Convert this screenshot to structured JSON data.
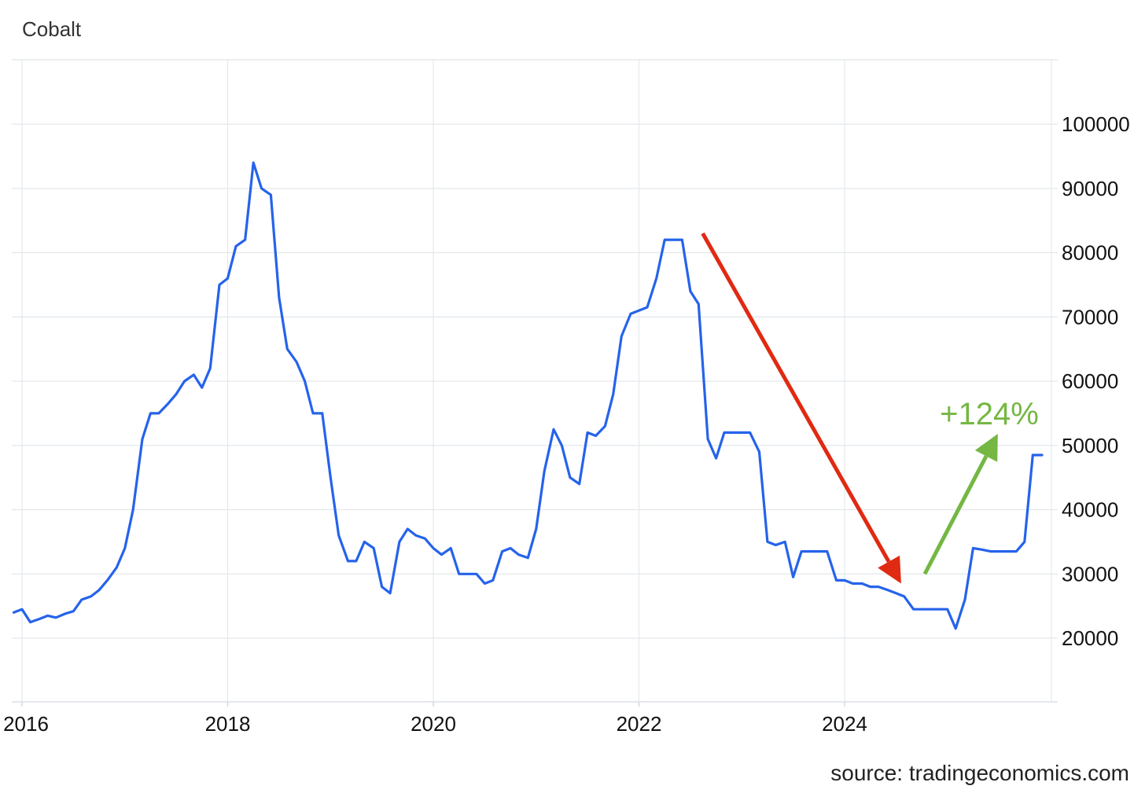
{
  "chart_data": {
    "type": "line",
    "title": "Cobalt",
    "source": "source: tradingeconomics.com",
    "xlabel": "",
    "ylabel": "",
    "xlim": [
      2015.95,
      2026.2
    ],
    "ylim": [
      15000,
      110000
    ],
    "x_ticks": [
      "2016",
      "2018",
      "2020",
      "2022",
      "2024"
    ],
    "y_ticks": [
      "20000",
      "30000",
      "40000",
      "50000",
      "60000",
      "70000",
      "80000",
      "90000",
      "100000"
    ],
    "grid": true,
    "y_axis_side": "right",
    "line_color": "#2563eb",
    "series": [
      {
        "points": [
          [
            2015.92,
            24000
          ],
          [
            2016.0,
            24500
          ],
          [
            2016.08,
            22500
          ],
          [
            2016.17,
            23000
          ],
          [
            2016.25,
            23500
          ],
          [
            2016.33,
            23200
          ],
          [
            2016.42,
            23800
          ],
          [
            2016.5,
            24200
          ],
          [
            2016.58,
            26000
          ],
          [
            2016.67,
            26500
          ],
          [
            2016.75,
            27500
          ],
          [
            2016.83,
            29000
          ],
          [
            2016.92,
            31000
          ],
          [
            2017.0,
            34000
          ],
          [
            2017.08,
            40000
          ],
          [
            2017.17,
            51000
          ],
          [
            2017.25,
            55000
          ],
          [
            2017.33,
            55000
          ],
          [
            2017.42,
            56500
          ],
          [
            2017.5,
            58000
          ],
          [
            2017.58,
            60000
          ],
          [
            2017.67,
            61000
          ],
          [
            2017.75,
            59000
          ],
          [
            2017.83,
            62000
          ],
          [
            2017.92,
            75000
          ],
          [
            2018.0,
            76000
          ],
          [
            2018.08,
            81000
          ],
          [
            2018.17,
            82000
          ],
          [
            2018.25,
            94000
          ],
          [
            2018.33,
            90000
          ],
          [
            2018.42,
            89000
          ],
          [
            2018.5,
            73000
          ],
          [
            2018.58,
            65000
          ],
          [
            2018.67,
            63000
          ],
          [
            2018.75,
            60000
          ],
          [
            2018.83,
            55000
          ],
          [
            2018.92,
            55000
          ],
          [
            2019.0,
            45000
          ],
          [
            2019.08,
            36000
          ],
          [
            2019.17,
            32000
          ],
          [
            2019.25,
            32000
          ],
          [
            2019.33,
            35000
          ],
          [
            2019.42,
            34000
          ],
          [
            2019.5,
            28000
          ],
          [
            2019.58,
            27000
          ],
          [
            2019.67,
            35000
          ],
          [
            2019.75,
            37000
          ],
          [
            2019.83,
            36000
          ],
          [
            2019.92,
            35500
          ],
          [
            2020.0,
            34000
          ],
          [
            2020.08,
            33000
          ],
          [
            2020.17,
            34000
          ],
          [
            2020.25,
            30000
          ],
          [
            2020.33,
            30000
          ],
          [
            2020.42,
            30000
          ],
          [
            2020.5,
            28500
          ],
          [
            2020.58,
            29000
          ],
          [
            2020.67,
            33500
          ],
          [
            2020.75,
            34000
          ],
          [
            2020.83,
            33000
          ],
          [
            2020.92,
            32500
          ],
          [
            2021.0,
            37000
          ],
          [
            2021.08,
            46000
          ],
          [
            2021.17,
            52500
          ],
          [
            2021.25,
            50000
          ],
          [
            2021.33,
            45000
          ],
          [
            2021.42,
            44000
          ],
          [
            2021.5,
            52000
          ],
          [
            2021.58,
            51500
          ],
          [
            2021.67,
            53000
          ],
          [
            2021.75,
            58000
          ],
          [
            2021.83,
            67000
          ],
          [
            2021.92,
            70500
          ],
          [
            2022.0,
            71000
          ],
          [
            2022.08,
            71500
          ],
          [
            2022.17,
            76000
          ],
          [
            2022.25,
            82000
          ],
          [
            2022.33,
            82000
          ],
          [
            2022.42,
            82000
          ],
          [
            2022.5,
            74000
          ],
          [
            2022.58,
            72000
          ],
          [
            2022.67,
            51000
          ],
          [
            2022.75,
            48000
          ],
          [
            2022.83,
            52000
          ],
          [
            2022.92,
            52000
          ],
          [
            2023.0,
            52000
          ],
          [
            2023.08,
            52000
          ],
          [
            2023.17,
            49000
          ],
          [
            2023.25,
            35000
          ],
          [
            2023.33,
            34500
          ],
          [
            2023.42,
            35000
          ],
          [
            2023.5,
            29500
          ],
          [
            2023.58,
            33500
          ],
          [
            2023.67,
            33500
          ],
          [
            2023.75,
            33500
          ],
          [
            2023.83,
            33500
          ],
          [
            2023.92,
            29000
          ],
          [
            2024.0,
            29000
          ],
          [
            2024.08,
            28500
          ],
          [
            2024.17,
            28500
          ],
          [
            2024.25,
            28000
          ],
          [
            2024.33,
            28000
          ],
          [
            2024.42,
            27500
          ],
          [
            2024.5,
            27000
          ],
          [
            2024.58,
            26500
          ],
          [
            2024.67,
            24500
          ],
          [
            2024.75,
            24500
          ],
          [
            2024.83,
            24500
          ],
          [
            2024.92,
            24500
          ],
          [
            2025.0,
            24500
          ],
          [
            2025.08,
            21500
          ],
          [
            2025.17,
            26000
          ],
          [
            2025.25,
            34000
          ],
          [
            2025.33,
            33800
          ],
          [
            2025.42,
            33500
          ],
          [
            2025.5,
            33500
          ],
          [
            2025.58,
            33500
          ],
          [
            2025.67,
            33500
          ],
          [
            2025.75,
            35000
          ],
          [
            2025.83,
            48500
          ],
          [
            2025.92,
            48500
          ]
        ]
      }
    ],
    "annotations": [
      {
        "kind": "arrow",
        "color": "#e02a12",
        "from": [
          2022.62,
          83000
        ],
        "to": [
          2024.55,
          28500
        ]
      },
      {
        "kind": "arrow",
        "color": "#74b743",
        "from": [
          2024.78,
          30000
        ],
        "to": [
          2025.49,
          51800
        ]
      },
      {
        "kind": "text",
        "text": "+124%",
        "color": "#74b743"
      }
    ]
  }
}
